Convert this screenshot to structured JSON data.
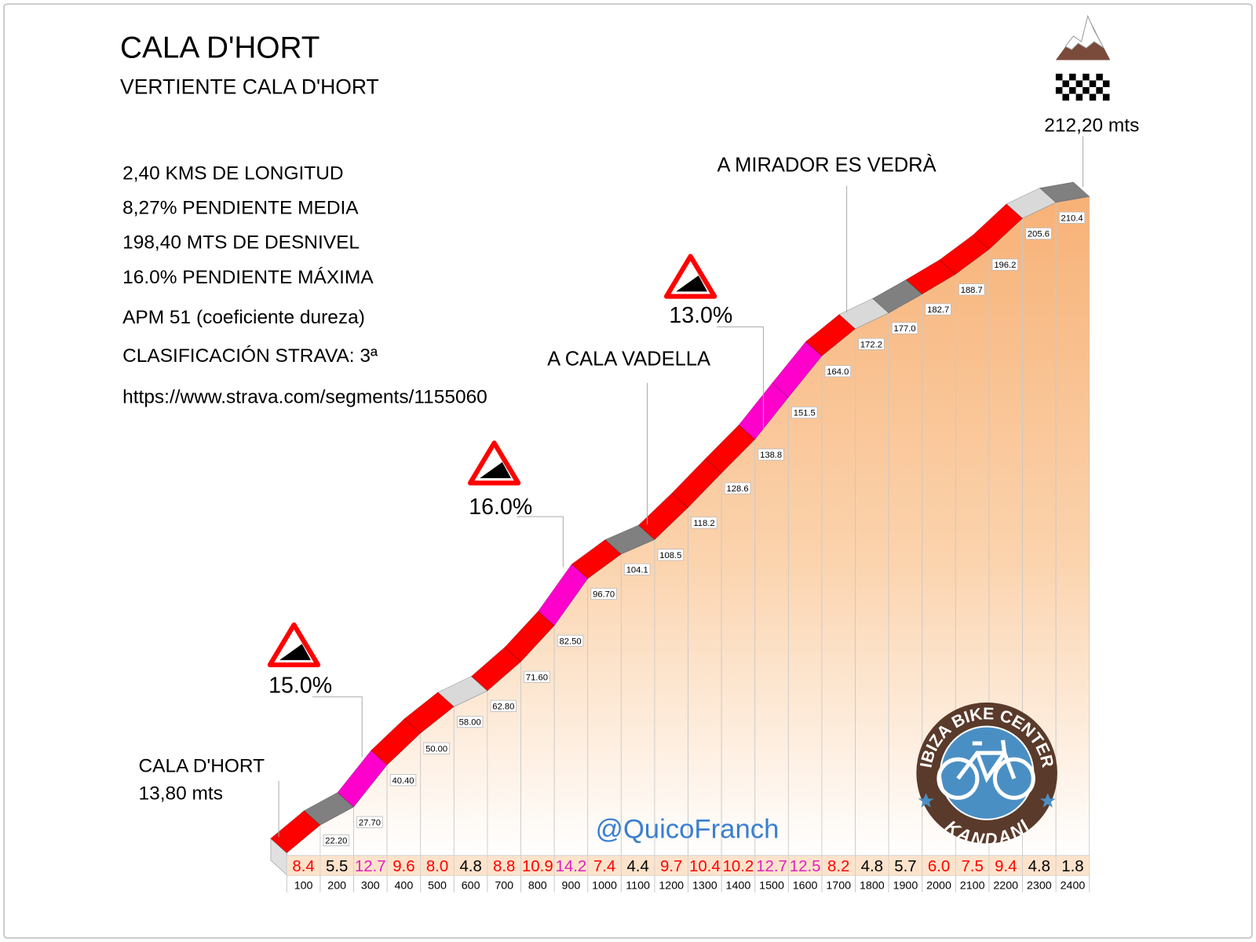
{
  "header": {
    "title": "CALA D'HORT",
    "subtitle": "VERTIENTE CALA D'HORT"
  },
  "stats": [
    "2,40 KMS DE LONGITUD",
    "8,27% PENDIENTE MEDIA",
    "198,40 MTS DE DESNIVEL",
    "16.0% PENDIENTE MÁXIMA",
    "APM 51 (coeficiente dureza)",
    "CLASIFICACIÓN STRAVA: 3ª",
    "https://www.strava.com/segments/1155060"
  ],
  "chart_data": {
    "type": "climb-profile",
    "start": {
      "name": "CALA D'HORT",
      "value": 13.8,
      "value_label": "13,80 mts"
    },
    "x": [
      100,
      200,
      300,
      400,
      500,
      600,
      700,
      800,
      900,
      1000,
      1100,
      1200,
      1300,
      1400,
      1500,
      1600,
      1700,
      1800,
      1900,
      2000,
      2100,
      2200,
      2300,
      2400
    ],
    "elevations": {
      "values": [
        22.2,
        27.7,
        40.4,
        50,
        58,
        62.8,
        71.6,
        82.5,
        96.7,
        104.1,
        108.5,
        118.2,
        128.6,
        138.8,
        151.5,
        164,
        172.2,
        177,
        182.7,
        188.7,
        196.2,
        205.6,
        210.4,
        212.2
      ],
      "value_labels": [
        "22.20",
        "27.70",
        "40.40",
        "50.00",
        "58.00",
        "62.80",
        "71.60",
        "82.50",
        "96.70",
        "104.1",
        "108.5",
        "118.2",
        "128.6",
        "138.8",
        "151.5",
        "164.0",
        "172.2",
        "177.0",
        "182.7",
        "188.7",
        "196.2",
        "205.6",
        "210.4",
        "212,20 mts"
      ]
    },
    "gradients": {
      "values": [
        8.4,
        5.5,
        12.7,
        9.6,
        8,
        4.8,
        8.8,
        10.9,
        14.2,
        7.4,
        4.4,
        9.7,
        10.4,
        10.2,
        12.7,
        12.5,
        8.2,
        4.8,
        5.7,
        6,
        7.5,
        9.4,
        4.8,
        1.8
      ],
      "value_labels": [
        "8.4",
        "5.5",
        "12.7",
        "9.6",
        "8.0",
        "4.8",
        "8.8",
        "10.9",
        "14.2",
        "7.4",
        "4.4",
        "9.7",
        "10.4",
        "10.2",
        "12.7",
        "12.5",
        "8.2",
        "4.8",
        "5.7",
        "6.0",
        "7.5",
        "9.4",
        "4.8",
        "1.8"
      ],
      "segment_colors": [
        "#ff0000",
        "#808080",
        "#ff00cc",
        "#ff0000",
        "#ff0000",
        "#d9d9d9",
        "#ff0000",
        "#ff0000",
        "#ff00cc",
        "#ff0000",
        "#808080",
        "#ff0000",
        "#ff0000",
        "#ff0000",
        "#ff00cc",
        "#ff00cc",
        "#ff0000",
        "#d9d9d9",
        "#808080",
        "#ff0000",
        "#ff0000",
        "#ff0000",
        "#d9d9d9",
        "#808080"
      ],
      "label_colors": [
        "#ff0000",
        "#000000",
        "#e020c0",
        "#ff0000",
        "#ff0000",
        "#000000",
        "#ff0000",
        "#ff0000",
        "#e020c0",
        "#ff0000",
        "#000000",
        "#ff0000",
        "#ff0000",
        "#ff0000",
        "#e020c0",
        "#e020c0",
        "#ff0000",
        "#000000",
        "#000000",
        "#ff0000",
        "#ff0000",
        "#ff0000",
        "#000000",
        "#000000"
      ]
    },
    "max_gradient_signs": [
      "15.0%",
      "16.0%",
      "13.0%"
    ],
    "landmarks": [
      "A CALA VADELLA",
      "A MIRADOR ES VEDRÀ"
    ]
  },
  "credit": "@QuicoFranch",
  "logo": {
    "top": "IBIZA BIKE CENTER",
    "bottom": "KANDANI"
  }
}
